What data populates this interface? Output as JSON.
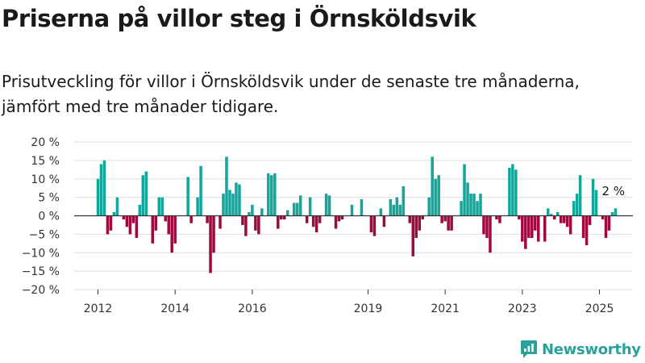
{
  "header": {
    "title": "Priserna på villor steg i Örnsköldsvik",
    "subtitle": "Prisutveckling för villor i Örnsköldsvik under de senaste tre månaderna, jämfört med tre månader tidigare."
  },
  "brand": {
    "name": "Newsworthy",
    "icon": "newsworthy-logo-icon",
    "color": "#2aa29b"
  },
  "chart_data": {
    "type": "bar",
    "title": "",
    "xlabel": "",
    "ylabel": "",
    "ylim": [
      -20,
      20
    ],
    "yticks": [
      -20,
      -15,
      -10,
      -5,
      0,
      5,
      10,
      15,
      20
    ],
    "ytick_labels": [
      "−20 %",
      "−15 %",
      "−10 %",
      "−5 %",
      "0 %",
      "5 %",
      "10 %",
      "15 %",
      "20 %"
    ],
    "x_start": 2012.0,
    "x_step": 0.08333,
    "xticks": [
      2012,
      2014,
      2016,
      2019,
      2021,
      2023,
      2025
    ],
    "xtick_labels": [
      "2012",
      "2014",
      "2016",
      "2019",
      "2021",
      "2023",
      "2025"
    ],
    "grid": "horizontal",
    "legend": "none",
    "colors": {
      "positive": "#14a59b",
      "negative": "#9c0a3f",
      "axis": "#333333",
      "grid": "#dddddd"
    },
    "annotation": {
      "text": "2 %"
    },
    "values": [
      10,
      14,
      15,
      -5,
      -4,
      1,
      5,
      0,
      -1,
      -3,
      -5,
      -2,
      -6,
      3,
      11,
      12,
      0,
      -7.5,
      -4,
      5,
      5,
      -1.5,
      -5,
      -10,
      -7.5,
      0,
      0,
      0,
      10.5,
      -2,
      0,
      5,
      13.5,
      0,
      -2,
      -15.5,
      -10,
      0,
      -3.5,
      6,
      16,
      7,
      6,
      9,
      8.5,
      -2.5,
      -5.5,
      1,
      3,
      -4,
      -5,
      2,
      0,
      11.5,
      11,
      11.5,
      -3.5,
      -1,
      -1,
      1.5,
      0,
      3.5,
      3.5,
      5.5,
      0,
      -2,
      5,
      -3,
      -4.5,
      -2,
      0,
      6,
      5.5,
      0,
      -3.5,
      -1.5,
      -1,
      0,
      0,
      3,
      0,
      0,
      4.5,
      0,
      0,
      -4.5,
      -5.5,
      0,
      2,
      -3,
      0,
      4.5,
      3,
      5,
      3,
      8,
      0,
      -2,
      -11,
      -6,
      -4,
      -1,
      0,
      5,
      16,
      10,
      11,
      -2,
      -1.5,
      -4,
      -4,
      0,
      0,
      4,
      14,
      9,
      6,
      6,
      4,
      6,
      -5,
      -6,
      -10,
      0,
      -1,
      -2,
      0,
      0,
      13,
      14,
      12.5,
      -1,
      -7,
      -9,
      -6,
      -6,
      -4,
      -7,
      0,
      -7,
      2,
      0.5,
      -1,
      1,
      -2,
      -2,
      -3,
      -5,
      4,
      6,
      11,
      -6,
      -8,
      -2.5,
      10,
      7,
      0,
      -1,
      -6,
      -4,
      1,
      2
    ]
  }
}
